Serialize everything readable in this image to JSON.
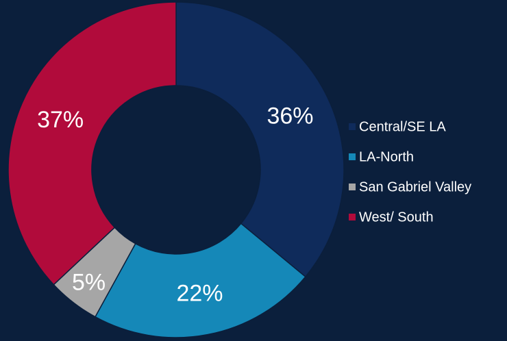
{
  "chart_data": {
    "type": "donut",
    "categories": [
      "Central/SE LA",
      "LA-North",
      "San Gabriel Valley",
      "West/ South"
    ],
    "values": [
      36,
      22,
      5,
      37
    ],
    "value_labels": [
      "36%",
      "22%",
      "5%",
      "37%"
    ],
    "colors": [
      "#0f2b5b",
      "#1588b8",
      "#a6a6a6",
      "#b10b3b"
    ],
    "legend": "right"
  }
}
